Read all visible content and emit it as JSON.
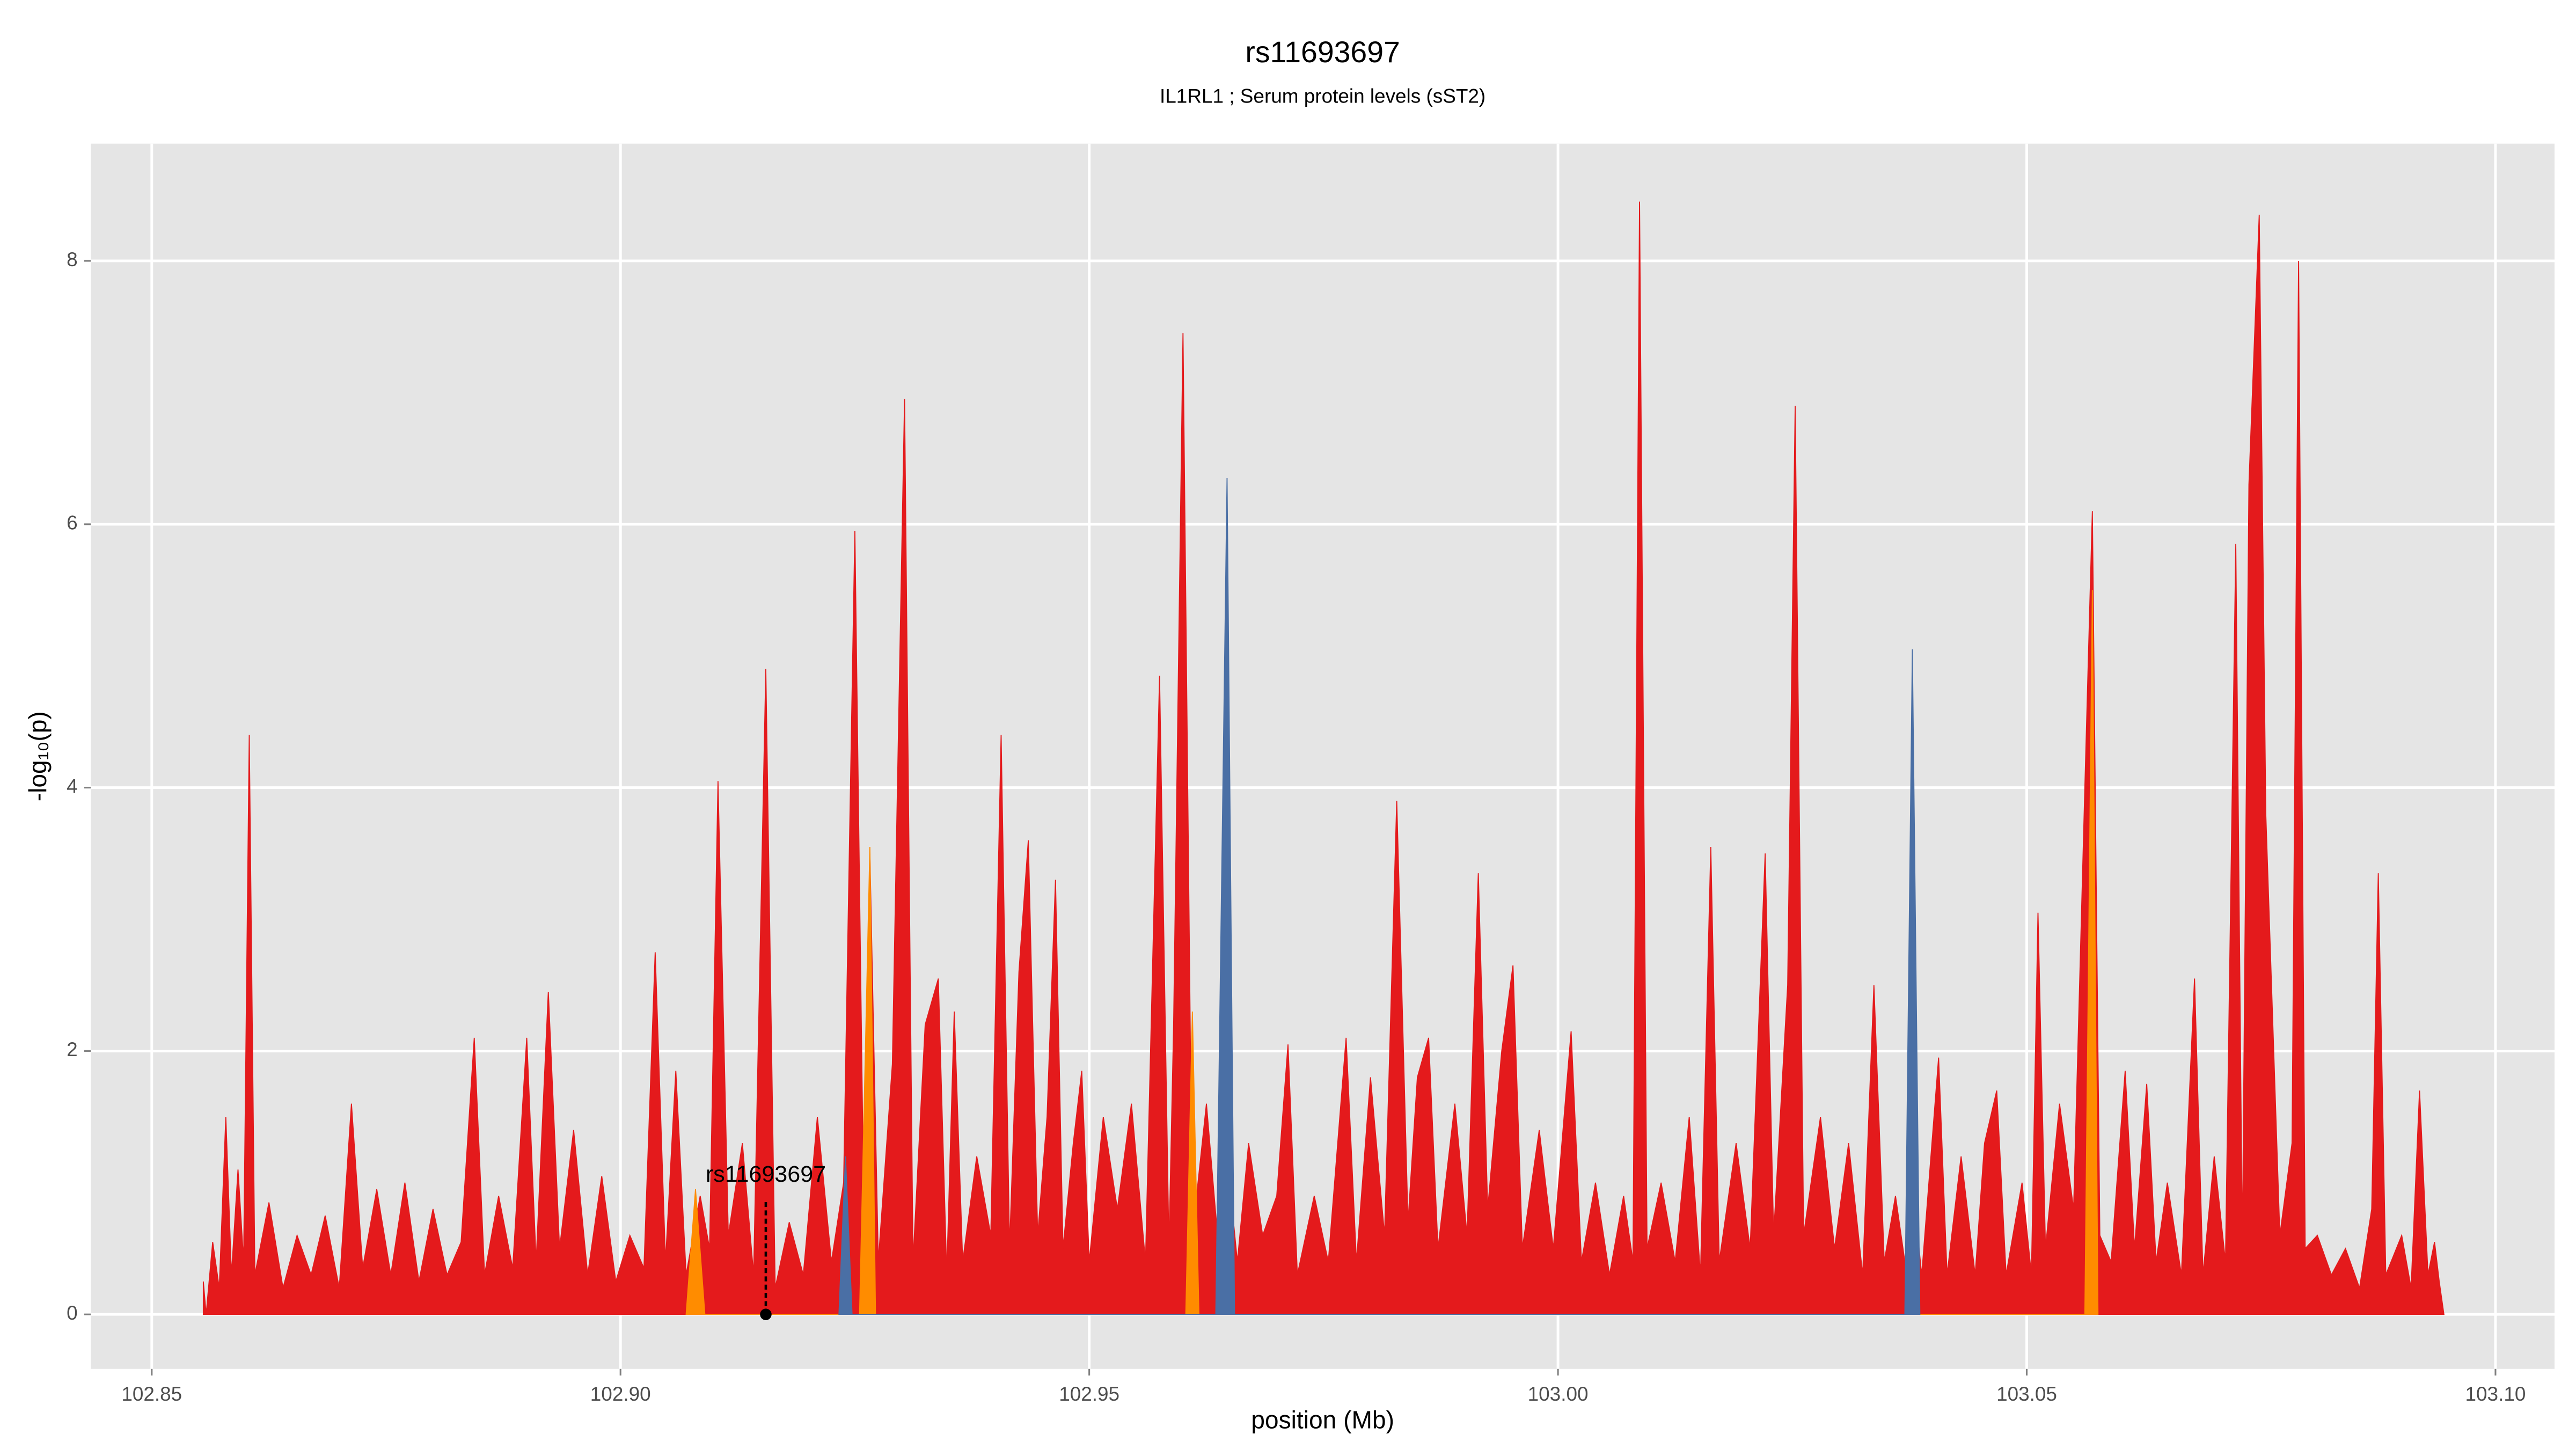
{
  "chart_data": {
    "type": "area",
    "title": "rs11693697",
    "subtitle": "IL1RL1 ; Serum protein levels (sST2)",
    "x_label": "position (Mb)",
    "y_label": "-log₁₀(p)",
    "xlim": [
      102.8435,
      103.1063
    ],
    "ylim": [
      -0.414,
      8.89
    ],
    "xticks": [
      102.85,
      {
        "value": 102.9,
        "label": "102.90"
      },
      {
        "value": 102.95,
        "label": "102.95"
      },
      {
        "value": 103.0,
        "label": "103.00"
      },
      103.05,
      {
        "value": 103.1,
        "label": "103.10"
      }
    ],
    "yticks": [
      0,
      2,
      4,
      6,
      8
    ],
    "grid": true,
    "snp_marker": {
      "label": "rs11693697",
      "x": 102.9155,
      "y": 0
    },
    "series": [
      {
        "color": "#e41a1c",
        "x": [
          102.8555,
          102.8558,
          102.8565,
          102.8572,
          102.8579,
          102.8585,
          102.8592,
          102.8598,
          102.8604,
          102.861,
          102.8625,
          102.864,
          102.8655,
          102.867,
          102.8685,
          102.87,
          102.8713,
          102.8725,
          102.874,
          102.8755,
          102.877,
          102.8785,
          102.88,
          102.8815,
          102.883,
          102.8844,
          102.8855,
          102.887,
          102.8885,
          102.89,
          102.891,
          102.8923,
          102.8935,
          102.895,
          102.8965,
          102.898,
          102.8995,
          102.901,
          102.9025,
          102.9037,
          102.9048,
          102.9059,
          102.907,
          102.9085,
          102.9095,
          102.9104,
          102.9115,
          102.913,
          102.9142,
          102.9155,
          102.9165,
          102.918,
          102.9195,
          102.921,
          102.9225,
          102.9238,
          102.925,
          102.926,
          102.9266,
          102.9275,
          102.929,
          102.9303,
          102.9312,
          102.9325,
          102.9339,
          102.9348,
          102.9356,
          102.9365,
          102.938,
          102.9395,
          102.9406,
          102.9415,
          102.9425,
          102.9435,
          102.9445,
          102.9455,
          102.9464,
          102.9472,
          102.9483,
          102.9492,
          102.95,
          102.9515,
          102.953,
          102.9545,
          102.956,
          102.9575,
          102.9585,
          102.959,
          102.96,
          102.961,
          102.9625,
          102.9638,
          102.9647,
          102.9658,
          102.967,
          102.9685,
          102.97,
          102.9712,
          102.9722,
          102.974,
          102.9755,
          102.9774,
          102.9785,
          102.98,
          102.9815,
          102.9828,
          102.984,
          102.985,
          102.9862,
          102.9872,
          102.989,
          102.9903,
          102.9915,
          102.9925,
          102.994,
          102.9952,
          102.9962,
          102.998,
          102.9995,
          103.0014,
          103.0025,
          103.004,
          103.0055,
          103.007,
          103.008,
          103.0087,
          103.0095,
          103.011,
          103.0125,
          103.014,
          103.0152,
          103.0163,
          103.0172,
          103.019,
          103.0205,
          103.0221,
          103.023,
          103.0245,
          103.0253,
          103.0262,
          103.028,
          103.0295,
          103.031,
          103.0325,
          103.0337,
          103.0348,
          103.036,
          103.0372,
          103.0378,
          103.0388,
          103.0406,
          103.0415,
          103.043,
          103.0445,
          103.0455,
          103.0468,
          103.0478,
          103.0495,
          103.0505,
          103.0512,
          103.052,
          103.0535,
          103.055,
          103.0562,
          103.057,
          103.0578,
          103.059,
          103.0605,
          103.0615,
          103.0628,
          103.0638,
          103.065,
          103.0665,
          103.0679,
          103.0688,
          103.07,
          103.0712,
          103.0723,
          103.073,
          103.0737,
          103.0748,
          103.0755,
          103.077,
          103.0783,
          103.079,
          103.0797,
          103.081,
          103.0825,
          103.084,
          103.0855,
          103.0868,
          103.0875,
          103.0883,
          103.09,
          103.091,
          103.0919,
          103.0928,
          103.0935,
          103.094,
          103.0945
        ],
        "values": [
          0.25,
          0,
          0.55,
          0.2,
          1.5,
          0.3,
          1.1,
          0.4,
          4.4,
          0.3,
          0.85,
          0.2,
          0.6,
          0.3,
          0.75,
          0.2,
          1.6,
          0.35,
          0.95,
          0.3,
          1.0,
          0.25,
          0.8,
          0.3,
          0.55,
          2.1,
          0.3,
          0.9,
          0.35,
          2.1,
          0.4,
          2.45,
          0.5,
          1.4,
          0.3,
          1.05,
          0.25,
          0.6,
          0.35,
          2.75,
          0.4,
          1.85,
          0.3,
          0.9,
          0.5,
          4.05,
          0.6,
          1.3,
          0.3,
          4.9,
          0.2,
          0.7,
          0.3,
          1.5,
          0.4,
          1.0,
          5.95,
          0.5,
          3.5,
          0.4,
          1.9,
          6.95,
          0.4,
          2.2,
          2.55,
          0.3,
          2.3,
          0.4,
          1.2,
          0.6,
          4.4,
          0.5,
          2.6,
          3.6,
          0.6,
          1.5,
          3.3,
          0.5,
          1.3,
          1.85,
          0.4,
          1.5,
          0.8,
          1.6,
          0.4,
          4.85,
          0.5,
          2.2,
          7.45,
          0.6,
          1.6,
          0.5,
          1.2,
          0.4,
          1.3,
          0.6,
          0.9,
          2.05,
          0.3,
          0.9,
          0.4,
          2.1,
          0.4,
          1.8,
          0.6,
          3.9,
          0.7,
          1.8,
          2.1,
          0.5,
          1.6,
          0.6,
          3.35,
          0.8,
          2.0,
          2.65,
          0.5,
          1.4,
          0.5,
          2.15,
          0.4,
          1.0,
          0.3,
          0.9,
          0.4,
          8.45,
          0.5,
          1.0,
          0.4,
          1.5,
          0.3,
          3.55,
          0.4,
          1.3,
          0.5,
          3.5,
          0.6,
          2.5,
          6.9,
          0.6,
          1.5,
          0.5,
          1.3,
          0.3,
          2.5,
          0.4,
          0.9,
          0.3,
          1.0,
          0.3,
          1.95,
          0.3,
          1.2,
          0.3,
          1.3,
          1.7,
          0.3,
          1.0,
          0.3,
          3.05,
          0.5,
          1.6,
          0.8,
          4.0,
          6.1,
          0.6,
          0.4,
          1.85,
          0.5,
          1.75,
          0.4,
          1.0,
          0.3,
          2.55,
          0.3,
          1.2,
          0.4,
          5.85,
          0.5,
          6.3,
          8.35,
          3.8,
          0.6,
          1.3,
          8.0,
          0.5,
          0.6,
          0.3,
          0.5,
          0.2,
          0.8,
          3.35,
          0.3,
          0.6,
          0.2,
          1.7,
          0.3,
          0.55,
          0.25,
          0
        ]
      },
      {
        "color": "#ff8c00",
        "x": [
          102.907,
          102.908,
          102.909,
          102.9255,
          102.9266,
          102.9272,
          102.9603,
          102.961,
          102.9617,
          103.0562,
          103.057,
          103.0576
        ],
        "values": [
          0,
          0.95,
          0,
          0,
          3.55,
          0,
          0,
          2.3,
          0,
          0,
          5.5,
          0
        ]
      },
      {
        "color": "#4a6fa5",
        "x": [
          102.9233,
          102.924,
          102.9247,
          102.9635,
          102.9647,
          102.9655,
          103.037,
          103.0378,
          103.0386
        ],
        "values": [
          0,
          1.2,
          0,
          0,
          6.35,
          0,
          0,
          5.05,
          0
        ]
      }
    ]
  }
}
